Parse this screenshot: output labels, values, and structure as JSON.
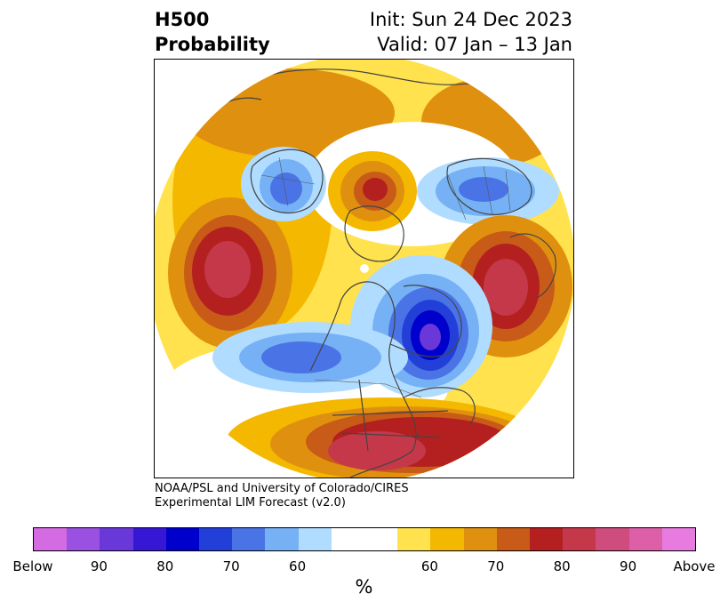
{
  "title": {
    "left_line1": "H500",
    "left_line2": "Probability",
    "right_line1": "Init: Sun 24 Dec 2023",
    "right_line2": "Valid: 07 Jan – 13 Jan"
  },
  "credit": {
    "line1": "NOAA/PSL and University of Colorado/CIRES",
    "line2": "Experimental LIM Forecast (v2.0)"
  },
  "colorbar": {
    "colors": [
      "#d56be3",
      "#9a50e0",
      "#6a37d9",
      "#3617d3",
      "#0000cc",
      "#2240d8",
      "#4a73e6",
      "#75b1f4",
      "#b0dcff",
      "#ffffff",
      "#ffffff",
      "#ffe24d",
      "#f5b800",
      "#e0900f",
      "#c85b17",
      "#b42020",
      "#c4384a",
      "#ce4c7e",
      "#dd5fa8",
      "#e77be0"
    ],
    "ticks": [
      "Below",
      "90",
      "80",
      "70",
      "60",
      "60",
      "70",
      "80",
      "90",
      "Above"
    ],
    "unit_label": "%"
  }
}
